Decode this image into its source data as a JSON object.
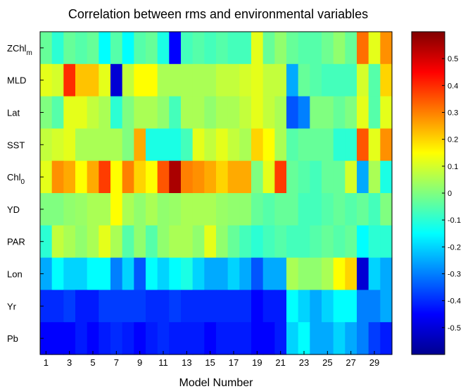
{
  "chart_data": {
    "type": "heatmap",
    "title": "Correlation between rms and environmental variables",
    "xlabel": "Model Number",
    "ylabel": "",
    "x_categories": [
      1,
      2,
      3,
      4,
      5,
      6,
      7,
      8,
      9,
      10,
      11,
      12,
      13,
      14,
      15,
      16,
      17,
      18,
      19,
      20,
      21,
      22,
      23,
      24,
      25,
      26,
      27,
      28,
      29,
      30
    ],
    "x_tick_labels": [
      "1",
      "3",
      "5",
      "7",
      "9",
      "11",
      "13",
      "15",
      "17",
      "19",
      "21",
      "23",
      "25",
      "27",
      "29"
    ],
    "rows": [
      {
        "label": "ZChl",
        "subscript": "m"
      },
      {
        "label": "MLD",
        "subscript": ""
      },
      {
        "label": "Lat",
        "subscript": ""
      },
      {
        "label": "SST",
        "subscript": ""
      },
      {
        "label": "Chl",
        "subscript": "0"
      },
      {
        "label": "YD",
        "subscript": ""
      },
      {
        "label": "PAR",
        "subscript": ""
      },
      {
        "label": "Lon",
        "subscript": ""
      },
      {
        "label": "Yr",
        "subscript": ""
      },
      {
        "label": "Pb",
        "subscript": ""
      }
    ],
    "values": [
      [
        -0.03,
        -0.1,
        -0.03,
        -0.05,
        -0.03,
        -0.15,
        -0.05,
        -0.15,
        -0.05,
        -0.03,
        -0.12,
        -0.45,
        -0.07,
        -0.05,
        -0.07,
        -0.05,
        -0.07,
        -0.07,
        0.12,
        -0.03,
        0.02,
        -0.03,
        -0.05,
        -0.05,
        -0.02,
        0.02,
        -0.03,
        0.32,
        0.12,
        0.28
      ],
      [
        0.12,
        0.1,
        0.4,
        0.22,
        0.22,
        0.12,
        -0.5,
        0.08,
        0.15,
        0.15,
        0.05,
        0.05,
        0.05,
        0.05,
        0.05,
        0.08,
        0.08,
        0.1,
        0.12,
        0.08,
        0.08,
        -0.25,
        -0.03,
        -0.05,
        -0.07,
        -0.07,
        -0.07,
        0.1,
        -0.05,
        0.2
      ],
      [
        0.0,
        -0.05,
        0.12,
        0.12,
        0.08,
        0.05,
        -0.1,
        0.0,
        0.05,
        0.05,
        0.02,
        -0.07,
        0.05,
        0.05,
        0.02,
        0.05,
        0.05,
        0.08,
        0.12,
        0.08,
        0.05,
        -0.35,
        -0.3,
        0.0,
        0.0,
        -0.03,
        0.0,
        0.12,
        -0.05,
        0.12
      ],
      [
        0.08,
        0.1,
        0.12,
        0.05,
        0.05,
        0.05,
        0.05,
        0.0,
        0.25,
        -0.12,
        -0.12,
        -0.12,
        -0.07,
        0.12,
        0.08,
        0.12,
        0.08,
        0.05,
        0.2,
        0.15,
        0.05,
        -0.05,
        -0.03,
        -0.03,
        -0.03,
        -0.1,
        -0.1,
        0.35,
        0.12,
        0.28
      ],
      [
        0.12,
        0.28,
        0.25,
        0.15,
        0.25,
        0.38,
        0.15,
        0.3,
        0.2,
        0.15,
        0.35,
        0.55,
        0.3,
        0.28,
        0.25,
        0.2,
        0.25,
        0.25,
        0.0,
        0.12,
        0.38,
        -0.03,
        -0.05,
        -0.07,
        -0.03,
        -0.03,
        0.1,
        -0.25,
        0.05,
        -0.12
      ],
      [
        0.0,
        0.0,
        0.02,
        0.03,
        0.05,
        0.05,
        0.15,
        0.05,
        0.02,
        0.05,
        0.02,
        0.03,
        0.05,
        0.05,
        0.05,
        0.03,
        0.02,
        0.02,
        -0.03,
        -0.05,
        -0.03,
        -0.03,
        -0.07,
        -0.07,
        -0.05,
        -0.03,
        -0.05,
        -0.03,
        -0.07,
        0.0
      ],
      [
        -0.1,
        0.08,
        0.05,
        0.02,
        0.05,
        0.12,
        0.05,
        -0.05,
        0.02,
        -0.05,
        0.02,
        0.05,
        0.05,
        0.02,
        0.12,
        0.02,
        -0.03,
        -0.07,
        -0.1,
        -0.07,
        -0.05,
        -0.07,
        -0.07,
        -0.05,
        -0.03,
        -0.05,
        -0.03,
        -0.15,
        -0.1,
        -0.1
      ],
      [
        -0.25,
        -0.15,
        -0.2,
        -0.2,
        -0.15,
        -0.15,
        -0.3,
        -0.2,
        -0.35,
        -0.15,
        -0.2,
        -0.15,
        -0.12,
        -0.2,
        -0.25,
        -0.25,
        -0.2,
        -0.25,
        -0.35,
        -0.25,
        -0.25,
        0.05,
        0.02,
        0.02,
        0.05,
        0.15,
        0.2,
        -0.5,
        -0.2,
        -0.25
      ],
      [
        -0.4,
        -0.4,
        -0.38,
        -0.42,
        -0.42,
        -0.38,
        -0.38,
        -0.38,
        -0.38,
        -0.4,
        -0.4,
        -0.38,
        -0.4,
        -0.4,
        -0.4,
        -0.4,
        -0.4,
        -0.4,
        -0.45,
        -0.42,
        -0.42,
        -0.15,
        -0.2,
        -0.25,
        -0.2,
        -0.15,
        -0.15,
        -0.3,
        -0.3,
        -0.25
      ],
      [
        -0.45,
        -0.45,
        -0.45,
        -0.42,
        -0.45,
        -0.42,
        -0.4,
        -0.42,
        -0.45,
        -0.42,
        -0.4,
        -0.42,
        -0.42,
        -0.42,
        -0.45,
        -0.42,
        -0.42,
        -0.42,
        -0.45,
        -0.45,
        -0.42,
        -0.2,
        -0.15,
        -0.25,
        -0.25,
        -0.2,
        -0.25,
        -0.3,
        -0.38,
        -0.42
      ]
    ],
    "colorbar": {
      "colormap": "jet",
      "range": [
        -0.6,
        0.6
      ],
      "ticks": [
        0.5,
        0.4,
        0.3,
        0.2,
        0.1,
        0,
        -0.1,
        -0.2,
        -0.3,
        -0.4,
        -0.5
      ],
      "tick_labels": [
        "0.5",
        "0.4",
        "0.3",
        "0.2",
        "0.1",
        "0",
        "-0.1",
        "-0.2",
        "-0.3",
        "-0.4",
        "-0.5"
      ]
    },
    "grid": false
  }
}
